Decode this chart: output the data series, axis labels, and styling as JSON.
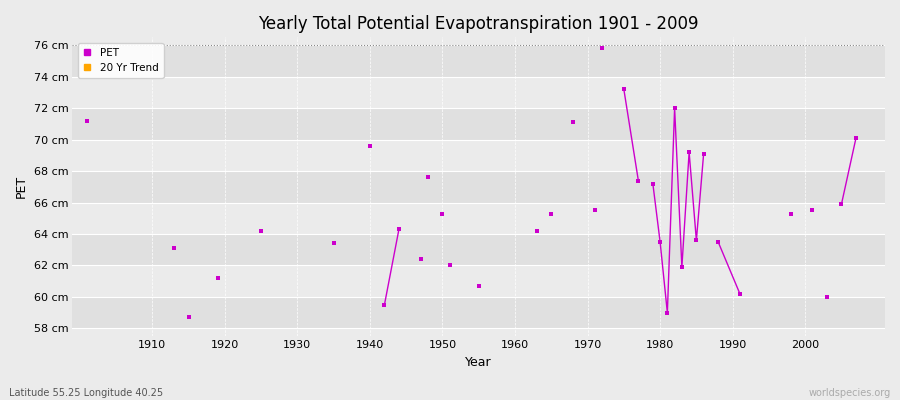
{
  "title": "Yearly Total Potential Evapotranspiration 1901 - 2009",
  "xlabel": "Year",
  "ylabel": "PET",
  "bottom_left": "Latitude 55.25 Longitude 40.25",
  "bottom_right": "worldspecies.org",
  "ylim": [
    57.5,
    76.5
  ],
  "xlim": [
    1899,
    2011
  ],
  "yticks": [
    58,
    60,
    62,
    64,
    66,
    68,
    70,
    72,
    74,
    76
  ],
  "ytick_labels": [
    "58 cm",
    "60 cm",
    "62 cm",
    "64 cm",
    "66 cm",
    "68 cm",
    "70 cm",
    "72 cm",
    "74 cm",
    "76 cm"
  ],
  "xticks": [
    1910,
    1920,
    1930,
    1940,
    1950,
    1960,
    1970,
    1980,
    1990,
    2000
  ],
  "pet_color": "#CC00CC",
  "trend_color": "#FFA500",
  "bg_light": "#EBEBEB",
  "bg_band_light": "#F0F0F0",
  "bg_band_dark": "#DCDCDC",
  "grid_color": "#FFFFFF",
  "dashed_line_y": 76,
  "pet_data": {
    "years": [
      1901,
      1913,
      1915,
      1919,
      1925,
      1935,
      1940,
      1942,
      1944,
      1947,
      1948,
      1950,
      1951,
      1955,
      1963,
      1965,
      1968,
      1971,
      1972,
      1975,
      1977,
      1979,
      1980,
      1981,
      1982,
      1983,
      1984,
      1985,
      1986,
      1988,
      1991,
      1998,
      2001,
      2003,
      2005,
      2007
    ],
    "values": [
      71.2,
      63.1,
      58.7,
      61.2,
      64.2,
      63.4,
      69.6,
      59.5,
      64.3,
      62.4,
      67.6,
      65.3,
      62.0,
      60.7,
      64.2,
      65.3,
      71.1,
      65.5,
      75.8,
      73.2,
      67.4,
      67.2,
      63.5,
      59.0,
      72.0,
      61.9,
      69.2,
      63.6,
      69.1,
      63.5,
      60.2,
      65.3,
      65.5,
      60.0,
      65.9,
      70.1
    ]
  },
  "line_segments": [
    {
      "years": [
        1942,
        1944
      ],
      "values": [
        59.5,
        64.3
      ]
    },
    {
      "years": [
        1975,
        1977
      ],
      "values": [
        73.2,
        67.4
      ]
    },
    {
      "years": [
        1979,
        1980,
        1981,
        1982,
        1983,
        1984,
        1985,
        1986
      ],
      "values": [
        67.2,
        63.5,
        59.0,
        72.0,
        61.9,
        69.2,
        63.6,
        69.1
      ]
    },
    {
      "years": [
        1988,
        1991
      ],
      "values": [
        63.5,
        60.2
      ]
    },
    {
      "years": [
        2005,
        2007
      ],
      "values": [
        65.9,
        70.1
      ]
    }
  ],
  "band_ranges": [
    [
      57.5,
      58
    ],
    [
      58,
      60
    ],
    [
      60,
      62
    ],
    [
      62,
      64
    ],
    [
      64,
      66
    ],
    [
      66,
      68
    ],
    [
      68,
      70
    ],
    [
      70,
      72
    ],
    [
      72,
      74
    ],
    [
      74,
      76
    ],
    [
      76,
      76.5
    ]
  ]
}
